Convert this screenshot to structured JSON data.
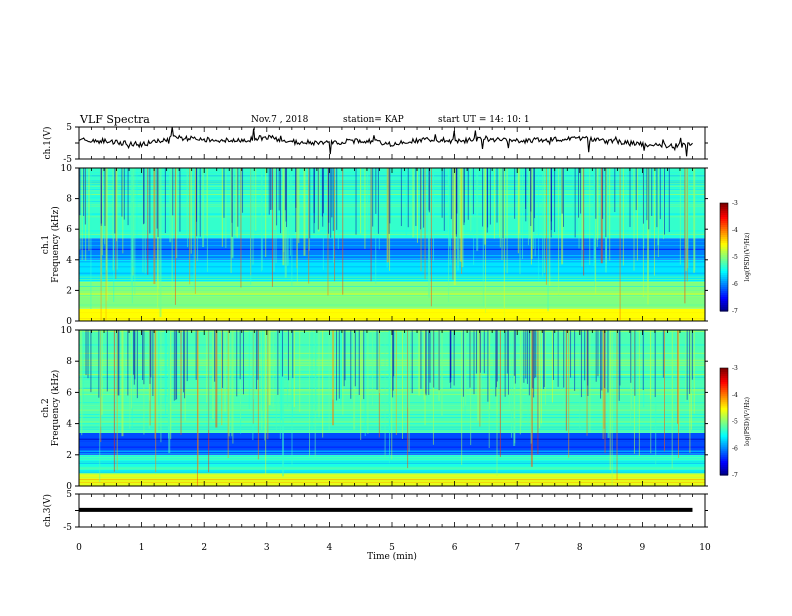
{
  "header": {
    "title": "VLF Spectra",
    "date": "Nov.7 , 2018",
    "station": "station= KAP",
    "start": "start UT = 14: 10: 1"
  },
  "chart_data": [
    {
      "type": "line",
      "panel": "ch1-voltage",
      "ylabel": "ch.1(V)",
      "ylim": [
        -5,
        5
      ],
      "ytick_labels": [
        "5",
        "-5"
      ],
      "x": [
        0,
        0.5,
        1,
        1.5,
        2,
        2.5,
        3,
        3.5,
        4,
        4.5,
        5,
        5.5,
        6,
        6.5,
        7,
        7.5,
        8,
        8.5,
        9,
        9.5,
        9.8
      ],
      "values": [
        0.8,
        0.5,
        -0.6,
        1.6,
        1.2,
        0.6,
        1.8,
        0.2,
        0.0,
        0.8,
        -0.3,
        1.0,
        0.4,
        1.4,
        0.6,
        1.0,
        1.6,
        0.4,
        -0.4,
        -0.9,
        -0.6
      ],
      "xlim": [
        0,
        10
      ]
    },
    {
      "type": "heatmap",
      "panel": "ch1-spectrogram",
      "ylabel": "ch.1\nFrequency (kHz)",
      "ylim": [
        0,
        10
      ],
      "ytick_labels": [
        "0",
        "2",
        "4",
        "6",
        "8",
        "10"
      ],
      "xlim": [
        0,
        10
      ],
      "bands_khz": [
        {
          "from": 0,
          "to": 0.8,
          "level": -4.5
        },
        {
          "from": 0.8,
          "to": 2.6,
          "level": -5.0
        },
        {
          "from": 2.6,
          "to": 4.0,
          "level": -5.6
        },
        {
          "from": 4.0,
          "to": 5.4,
          "level": -6.0
        },
        {
          "from": 5.4,
          "to": 10,
          "level": -5.3
        }
      ],
      "colorbar": {
        "label": "log(PSD)(V²/Hz)",
        "ticks": [
          "-3",
          "-4",
          "-5",
          "-6",
          "-7"
        ],
        "range": [
          -7,
          -3
        ]
      }
    },
    {
      "type": "heatmap",
      "panel": "ch2-spectrogram",
      "ylabel": "ch.2\nFrequency (kHz)",
      "ylim": [
        0,
        10
      ],
      "ytick_labels": [
        "0",
        "2",
        "4",
        "6",
        "8",
        "10"
      ],
      "xlim": [
        0,
        10
      ],
      "bands_khz": [
        {
          "from": 0,
          "to": 0.8,
          "level": -4.6
        },
        {
          "from": 0.8,
          "to": 2.0,
          "level": -5.4
        },
        {
          "from": 2.0,
          "to": 3.4,
          "level": -6.2
        },
        {
          "from": 3.4,
          "to": 10,
          "level": -5.2
        }
      ],
      "colorbar": {
        "label": "log(PSD)(V²/Hz)",
        "ticks": [
          "-3",
          "-4",
          "-5",
          "-6",
          "-7"
        ],
        "range": [
          -7,
          -3
        ]
      }
    },
    {
      "type": "line",
      "panel": "ch3-voltage",
      "ylabel": "ch.3(V)",
      "ylim": [
        -5,
        5
      ],
      "ytick_labels": [
        "5",
        "-5"
      ],
      "x": [
        0,
        9.8
      ],
      "values": [
        0.2,
        0.2
      ],
      "xlim": [
        0,
        10
      ],
      "xlabel": "Time (min)",
      "xtick_labels": [
        "0",
        "1",
        "2",
        "3",
        "4",
        "5",
        "6",
        "7",
        "8",
        "9",
        "10"
      ]
    }
  ]
}
